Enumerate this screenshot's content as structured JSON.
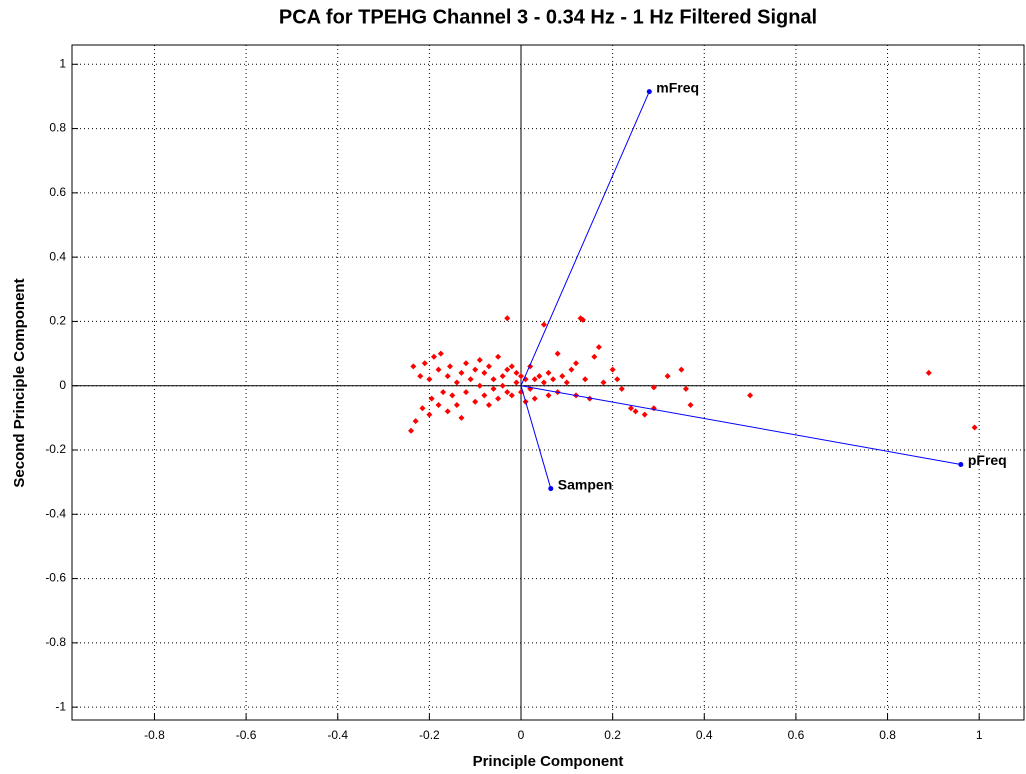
{
  "chart_data": {
    "type": "biplot",
    "title": "PCA for TPEHG Channel 3 - 0.34 Hz - 1 Hz Filtered Signal",
    "x_label": "Principle Component",
    "y_label": "Second Principle Component",
    "xlim": [
      -0.98,
      1.1
    ],
    "ylim": [
      -1.04,
      1.06
    ],
    "xticks": [
      -0.8,
      -0.6,
      -0.4,
      -0.2,
      0,
      0.2,
      0.4,
      0.6,
      0.8,
      1
    ],
    "yticks": [
      -1,
      -0.8,
      -0.6,
      -0.4,
      -0.2,
      0,
      0.2,
      0.4,
      0.6,
      0.8,
      1
    ],
    "grid": true,
    "points": {
      "color": "#ff0000",
      "x": [
        -0.24,
        -0.235,
        -0.23,
        -0.22,
        -0.215,
        -0.21,
        -0.2,
        -0.2,
        -0.195,
        -0.19,
        -0.18,
        -0.18,
        -0.175,
        -0.17,
        -0.16,
        -0.16,
        -0.155,
        -0.15,
        -0.14,
        -0.14,
        -0.13,
        -0.13,
        -0.12,
        -0.12,
        -0.11,
        -0.1,
        -0.1,
        -0.09,
        -0.09,
        -0.08,
        -0.08,
        -0.07,
        -0.07,
        -0.06,
        -0.06,
        -0.05,
        -0.05,
        -0.04,
        -0.04,
        -0.03,
        -0.03,
        -0.03,
        -0.02,
        -0.02,
        -0.01,
        -0.01,
        0,
        0,
        0.01,
        0.01,
        0.02,
        0.02,
        0.03,
        0.03,
        0.04,
        0.05,
        0.05,
        0.06,
        0.06,
        0.07,
        0.08,
        0.08,
        0.09,
        0.1,
        0.11,
        0.12,
        0.12,
        0.13,
        0.135,
        0.14,
        0.15,
        0.16,
        0.17,
        0.18,
        0.2,
        0.21,
        0.22,
        0.24,
        0.25,
        0.27,
        0.29,
        0.29,
        0.32,
        0.35,
        0.36,
        0.37,
        0.5,
        0.89,
        0.99
      ],
      "y": [
        -0.14,
        0.06,
        -0.11,
        0.03,
        -0.07,
        0.07,
        -0.09,
        0.02,
        -0.04,
        0.09,
        0.05,
        -0.06,
        0.1,
        -0.02,
        0.03,
        -0.08,
        0.06,
        -0.03,
        0.01,
        -0.06,
        0.04,
        -0.1,
        0.07,
        -0.02,
        0.02,
        0.05,
        -0.05,
        0.08,
        0,
        -0.03,
        0.04,
        0.06,
        -0.06,
        0.02,
        -0.01,
        0.09,
        -0.04,
        0.03,
        0,
        0.21,
        -0.02,
        0.05,
        0.06,
        -0.03,
        0.01,
        0.04,
        -0.02,
        0.03,
        0.02,
        -0.05,
        0.06,
        -0.01,
        0.02,
        -0.04,
        0.03,
        0.19,
        0.01,
        -0.03,
        0.04,
        0.02,
        0.1,
        -0.02,
        0.03,
        0.01,
        0.05,
        0.07,
        -0.03,
        0.21,
        0.205,
        0.02,
        -0.04,
        0.09,
        0.12,
        0.01,
        0.05,
        0.02,
        -0.01,
        -0.07,
        -0.08,
        -0.09,
        -0.005,
        -0.07,
        0.03,
        0.05,
        -0.01,
        -0.06,
        -0.03,
        0.04,
        -0.13
      ]
    },
    "vectors": {
      "color": "#0000ff",
      "names": [
        "mFreq",
        "pFreq",
        "Sampen"
      ],
      "x": [
        0.28,
        0.96,
        0.065
      ],
      "y": [
        0.915,
        -0.245,
        -0.32
      ]
    }
  }
}
